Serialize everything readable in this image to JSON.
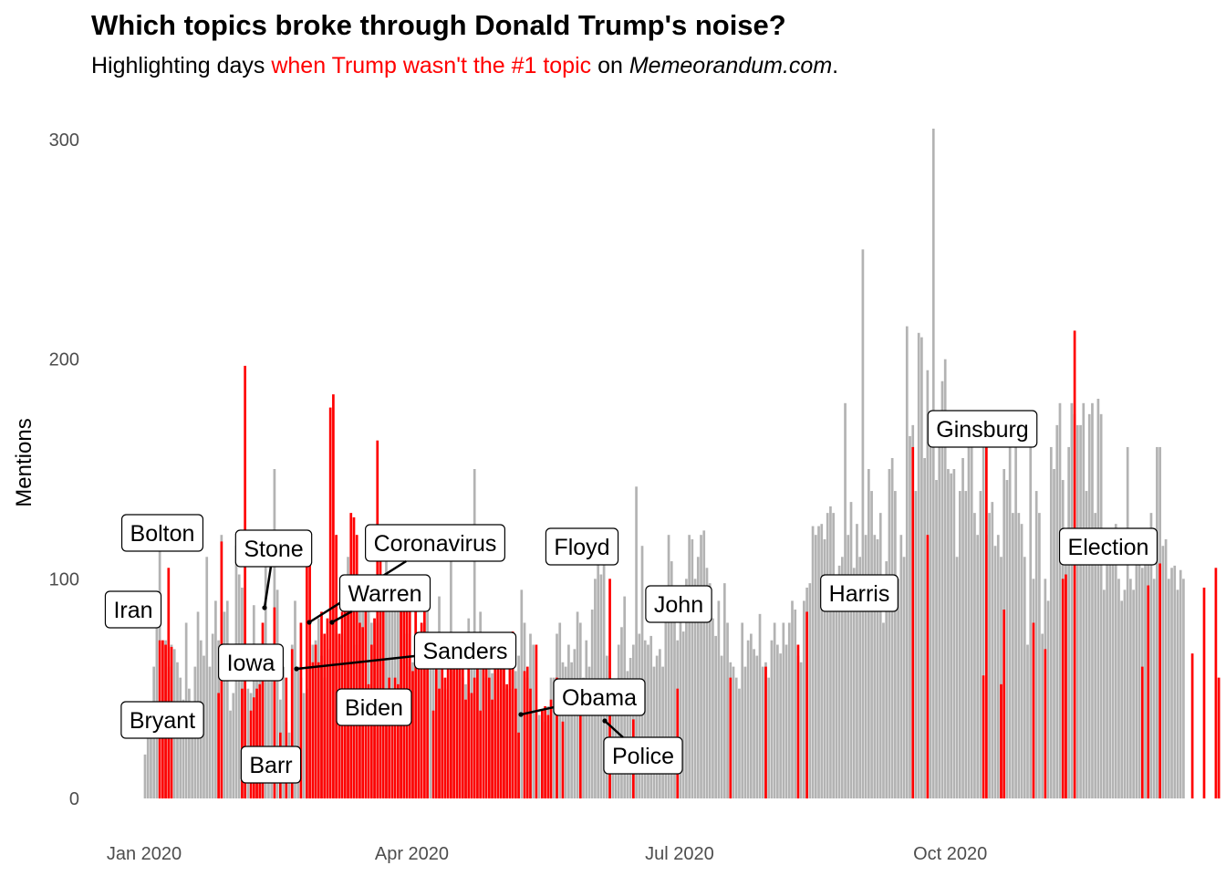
{
  "header": {
    "title": "Which topics broke through Donald Trump's noise?",
    "subtitle_pre": "Highlighting days ",
    "subtitle_highlight": "when Trump wasn't the #1 topic",
    "subtitle_mid": " on ",
    "subtitle_site": "Memeorandum.com",
    "subtitle_end": "."
  },
  "colors": {
    "trump_top": "#b3b3b3",
    "other_top": "#ff0000",
    "tick_text": "#4d4d4d"
  },
  "chart_data": {
    "type": "bar",
    "title": "Which topics broke through Donald Trump's noise?",
    "ylabel": "Mentions",
    "xlabel": "",
    "ylim": [
      0,
      310
    ],
    "yticks": [
      0,
      100,
      200,
      300
    ],
    "xticks": [
      {
        "label": "Jan 2020",
        "day": 0
      },
      {
        "label": "Apr 2020",
        "day": 91
      },
      {
        "label": "Jul 2020",
        "day": 182
      },
      {
        "label": "Oct 2020",
        "day": 274
      }
    ],
    "x_start": "2020-01-01",
    "legend": "none",
    "grid": false,
    "series": [
      {
        "highlight": false,
        "values": [
          20,
          28,
          35,
          60,
          90,
          118,
          72,
          72,
          60,
          70,
          68,
          62,
          55,
          45,
          80,
          50,
          40,
          60,
          85,
          72,
          65,
          110,
          60,
          75,
          90,
          72,
          120,
          85,
          90,
          40,
          48,
          115,
          102,
          96,
          108,
          50,
          48,
          88,
          60,
          60,
          70,
          122,
          55,
          70,
          150,
          95,
          45,
          60,
          35,
          30,
          70,
          90,
          60,
          55,
          48,
          50,
          40,
          70,
          72,
          82,
          65,
          55,
          60,
          68,
          60,
          88,
          70,
          75,
          92,
          110,
          95,
          98,
          70,
          85,
          95,
          100,
          90,
          80,
          82,
          80,
          98,
          95,
          110,
          88,
          90,
          92,
          100,
          100,
          88,
          75,
          60,
          62,
          98,
          70,
          75,
          80,
          90,
          62,
          70,
          68,
          92,
          70,
          50,
          45,
          110,
          58,
          60,
          65,
          55,
          52,
          82,
          75,
          150,
          72,
          85,
          60,
          55,
          64,
          57,
          75,
          40,
          60,
          70,
          50,
          50,
          72,
          58,
          65,
          95,
          80,
          55,
          75,
          70,
          36,
          38,
          40,
          35,
          42,
          55,
          55,
          75,
          80,
          62,
          60,
          70,
          62,
          68,
          85,
          80,
          55,
          72,
          60,
          86,
          100,
          116,
          102,
          112,
          65,
          58,
          50,
          40,
          70,
          78,
          92,
          58,
          64,
          70,
          142,
          75,
          115,
          72,
          70,
          74,
          60,
          65,
          68,
          60,
          95,
          120,
          108,
          85,
          72,
          92,
          76,
          100,
          120,
          118,
          100,
          110,
          120,
          122,
          105,
          98,
          82,
          74,
          90,
          65,
          98,
          80,
          62,
          60,
          55,
          50,
          80,
          60,
          72,
          75,
          68,
          65,
          84,
          60,
          62,
          55,
          72,
          80,
          70,
          66,
          80,
          70,
          80,
          90,
          86,
          65,
          62,
          90,
          96,
          98,
          124,
          120,
          124,
          125,
          118,
          130,
          133,
          130,
          100,
          106,
          110,
          180,
          120,
          135,
          105,
          125,
          110,
          250,
          120,
          150,
          140,
          120,
          118,
          130,
          80,
          108,
          150,
          155,
          140,
          100,
          120,
          110,
          215,
          165,
          170,
          140,
          212,
          210,
          155,
          195,
          170,
          305,
          145,
          160,
          190,
          200,
          150,
          148,
          150,
          110,
          140,
          155,
          140,
          160,
          170,
          130,
          120,
          140,
          165,
          120,
          130,
          135,
          115,
          120,
          110,
          150,
          145,
          160,
          130,
          170,
          130,
          125,
          110,
          70,
          165,
          100,
          140,
          130,
          75,
          100,
          90,
          160,
          150,
          170,
          180,
          145,
          110,
          160,
          180,
          175,
          170,
          170,
          180,
          140,
          175,
          180,
          130,
          182,
          175,
          95,
          110,
          115,
          120,
          125,
          100,
          90,
          95,
          160,
          100,
          95,
          110,
          120,
          105,
          110,
          120,
          130,
          100,
          160,
          160,
          115,
          118,
          100,
          105,
          106,
          95,
          104,
          100
        ]
      },
      {
        "highlight": true,
        "days": [
          5,
          6,
          7,
          8,
          9,
          25,
          26,
          33,
          34,
          36,
          37,
          38,
          39,
          40,
          44,
          46,
          48,
          50,
          53,
          55,
          56,
          57,
          58,
          59,
          60,
          61,
          62,
          63,
          64,
          65,
          66,
          67,
          68,
          69,
          70,
          71,
          72,
          73,
          74,
          75,
          76,
          77,
          78,
          79,
          80,
          81,
          82,
          83,
          84,
          85,
          86,
          87,
          88,
          89,
          90,
          91,
          92,
          93,
          94,
          95,
          96,
          98,
          99,
          100,
          101,
          102,
          103,
          104,
          105,
          106,
          107,
          108,
          109,
          110,
          111,
          112,
          113,
          114,
          115,
          116,
          117,
          118,
          119,
          120,
          121,
          122,
          123,
          124,
          125,
          126,
          127,
          129,
          130,
          131,
          133,
          135,
          136,
          137,
          138,
          140,
          142,
          148,
          158,
          166,
          181,
          199,
          211,
          222,
          225,
          261,
          266,
          285,
          286,
          291,
          292,
          302,
          306,
          312,
          313,
          316,
          339,
          341,
          345,
          356,
          360,
          364,
          365
        ],
        "values": [
          72,
          72,
          70,
          105,
          69,
          48,
          117,
          50,
          197,
          40,
          46,
          50,
          52,
          80,
          87,
          30,
          55,
          68,
          80,
          120,
          115,
          62,
          70,
          62,
          85,
          75,
          82,
          178,
          184,
          120,
          75,
          85,
          85,
          90,
          130,
          128,
          120,
          80,
          78,
          90,
          52,
          70,
          82,
          163,
          110,
          100,
          50,
          55,
          50,
          55,
          52,
          92,
          85,
          85,
          88,
          58,
          85,
          70,
          80,
          90,
          74,
          40,
          60,
          50,
          62,
          55,
          60,
          70,
          72,
          60,
          74,
          75,
          45,
          60,
          48,
          55,
          60,
          40,
          72,
          74,
          55,
          45,
          75,
          60,
          64,
          62,
          52,
          64,
          76,
          50,
          30,
          58,
          60,
          50,
          70,
          40,
          42,
          38,
          45,
          55,
          35,
          38,
          100,
          36,
          50,
          55,
          60,
          70,
          85,
          160,
          120,
          56,
          160,
          52,
          86,
          80,
          68,
          100,
          102,
          213,
          60,
          97,
          107,
          66,
          96,
          105,
          55
        ]
      }
    ],
    "annotations": [
      {
        "label": "Bolton",
        "day": 6
      },
      {
        "label": "Iran",
        "day": 3
      },
      {
        "label": "Bryant",
        "day": 26
      },
      {
        "label": "Stone",
        "day": 42
      },
      {
        "label": "Barr",
        "day": 48
      },
      {
        "label": "Iowa",
        "day": 55
      },
      {
        "label": "Coronavirus",
        "day": 60
      },
      {
        "label": "Warren",
        "day": 67
      },
      {
        "label": "Sanders",
        "day": 56
      },
      {
        "label": "Biden",
        "day": 68
      },
      {
        "label": "Floyd",
        "day": 148
      },
      {
        "label": "Obama",
        "day": 129
      },
      {
        "label": "Police",
        "day": 158
      },
      {
        "label": "John",
        "day": 199
      },
      {
        "label": "Harris",
        "day": 222
      },
      {
        "label": "Ginsburg",
        "day": 261
      },
      {
        "label": "Election",
        "day": 307
      }
    ]
  }
}
